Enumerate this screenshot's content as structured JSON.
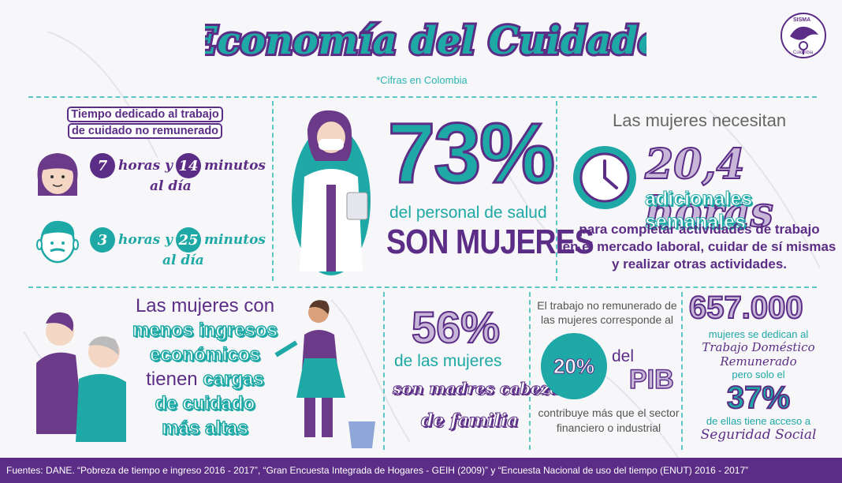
{
  "header": {
    "title": "Economía del Cuidado",
    "subtitle": "*Cifras en Colombia",
    "logo_text_top": "SISMA",
    "logo_text_bottom": "Colombia"
  },
  "unpaid_time": {
    "heading_line1": "Tiempo dedicado al trabajo",
    "heading_line2": "de cuidado no remunerado",
    "women": {
      "hours": "7",
      "hours_label": "horas y",
      "minutes": "14",
      "minutes_label": "minutos",
      "per_day": "al día"
    },
    "men": {
      "hours": "3",
      "hours_label": "horas y",
      "minutes": "25",
      "minutes_label": "minutos",
      "per_day": "al día"
    }
  },
  "health": {
    "percent": "73%",
    "line1": "del personal de salud",
    "line2": "SON MUJERES"
  },
  "hours_needed": {
    "intro": "Las mujeres necesitan",
    "value": "20,4 horas",
    "label": "adicionales semanales",
    "line1": "para completar actividades de trabajo",
    "line2": "en el mercado laboral, cuidar de sí mismas",
    "line3": "y realizar otras actividades."
  },
  "care_load": {
    "line1": "Las mujeres con",
    "line2": "menos ingresos",
    "line3": "económicos",
    "line4a": "tienen",
    "line4b": "cargas",
    "line5": "de cuidado",
    "line6": "más altas"
  },
  "mothers": {
    "percent": "56%",
    "line1": "de las mujeres",
    "line2": "son madres cabeza",
    "line3": "de familia"
  },
  "gdp": {
    "line1": "El trabajo no remunerado de",
    "line2": "las mujeres corresponde al",
    "percent": "20%",
    "del": "del",
    "pib": "PIB",
    "line3": "contribuye más que el sector",
    "line4": "financiero o industrial"
  },
  "domestic": {
    "count": "657.000",
    "line1": "mujeres se dedican al",
    "line2": "Trabajo Doméstico",
    "line3": "Remunerado",
    "line4": "pero solo el",
    "percent": "37%",
    "line5": "de ellas tiene acceso a",
    "line6": "Seguridad Social"
  },
  "footer": {
    "sources": "Fuentes: DANE. “Pobreza de tiempo e ingreso 2016 - 2017”, “Gran Encuesta Integrada de Hogares - GEIH (2009)” y “Encuesta Nacional de uso del tiempo (ENUT) 2016 - 2017”"
  },
  "colors": {
    "teal": "#1ea8a6",
    "purple": "#5b2d86",
    "lavender": "#c7b6d8"
  }
}
